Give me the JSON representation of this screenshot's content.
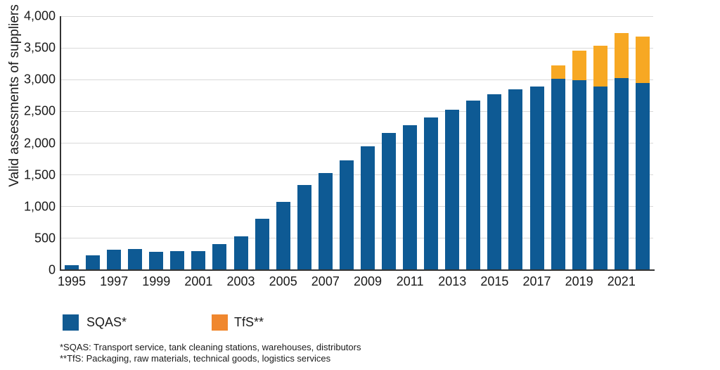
{
  "chart_data": {
    "type": "bar",
    "stacked": true,
    "title": "",
    "xlabel": "",
    "ylabel": "Valid assessments of suppliers",
    "ylim": [
      0,
      4000
    ],
    "ytick_step": 500,
    "ytick_labels": [
      "0",
      "500",
      "1,000",
      "1,500",
      "2,000",
      "2,500",
      "3,000",
      "3,500",
      "4,000"
    ],
    "xtick_labels": [
      "1995",
      "1997",
      "1999",
      "2001",
      "2003",
      "2005",
      "2007",
      "2009",
      "2011",
      "2013",
      "2015",
      "2017",
      "2019",
      "2021"
    ],
    "grid": true,
    "legend_position": "bottom",
    "categories": [
      1995,
      1996,
      1997,
      1998,
      1999,
      2000,
      2001,
      2002,
      2003,
      2004,
      2005,
      2006,
      2007,
      2008,
      2009,
      2010,
      2011,
      2012,
      2013,
      2014,
      2015,
      2016,
      2017,
      2018,
      2019,
      2020,
      2021,
      2022
    ],
    "series": [
      {
        "name": "SQAS*",
        "color": "#0E5A94",
        "values": [
          80,
          230,
          320,
          335,
          290,
          300,
          300,
          410,
          530,
          810,
          1080,
          1340,
          1530,
          1730,
          1950,
          2160,
          2280,
          2400,
          2530,
          2670,
          2770,
          2850,
          2890,
          3010,
          2990,
          2890,
          3020,
          2950
        ]
      },
      {
        "name": "TfS**",
        "color": "#F7A823",
        "values": [
          0,
          0,
          0,
          0,
          0,
          0,
          0,
          0,
          0,
          0,
          0,
          0,
          0,
          0,
          0,
          0,
          0,
          0,
          0,
          0,
          0,
          0,
          0,
          210,
          470,
          650,
          710,
          730
        ]
      }
    ]
  },
  "legend": {
    "items": [
      {
        "label": "SQAS*",
        "color": "#115A92",
        "swatch": "square"
      },
      {
        "label": "TfS**",
        "color": "#F0872E",
        "swatch": "square"
      }
    ]
  },
  "footnotes": [
    "*SQAS: Transport service, tank cleaning stations, warehouses, distributors",
    "**TfS: Packaging, raw materials, technical goods, logistics services"
  ]
}
